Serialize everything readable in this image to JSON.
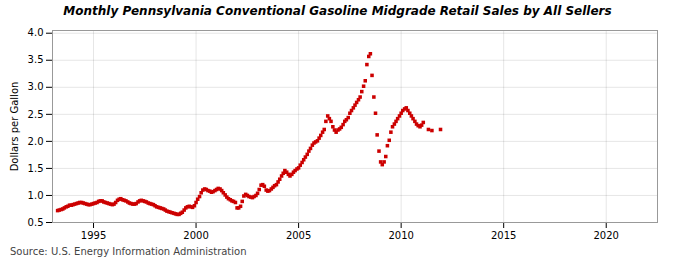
{
  "chart_data": {
    "type": "scatter",
    "title": "Monthly Pennsylvania Conventional Gasoline Midgrade Retail Sales by All Sellers",
    "ylabel": "Dollars per Gallon",
    "source": "Source: U.S. Energy Information Administration",
    "color": "#cc0000",
    "marker": "square",
    "grid": true,
    "xlim": [
      1993.0,
      2022.5
    ],
    "ylim": [
      0.5,
      4.05
    ],
    "xticks": [
      1995,
      2000,
      2005,
      2010,
      2015,
      2020
    ],
    "yticks": [
      0.5,
      {
        "value": 1.0,
        "label": "1.0"
      },
      1.5,
      {
        "value": 2.0,
        "label": "2.0"
      },
      2.5,
      {
        "value": 3.0,
        "label": "3.0"
      },
      3.5,
      {
        "value": 4.0,
        "label": "4.0"
      }
    ],
    "x": [
      1993.25,
      1993.33,
      1993.42,
      1993.5,
      1993.58,
      1993.67,
      1993.75,
      1993.83,
      1993.92,
      1994.0,
      1994.08,
      1994.17,
      1994.25,
      1994.33,
      1994.42,
      1994.5,
      1994.58,
      1994.67,
      1994.75,
      1994.83,
      1994.92,
      1995.0,
      1995.08,
      1995.17,
      1995.25,
      1995.33,
      1995.42,
      1995.5,
      1995.58,
      1995.67,
      1995.75,
      1995.83,
      1995.92,
      1996.0,
      1996.08,
      1996.17,
      1996.25,
      1996.33,
      1996.42,
      1996.5,
      1996.58,
      1996.67,
      1996.75,
      1996.83,
      1996.92,
      1997.0,
      1997.08,
      1997.17,
      1997.25,
      1997.33,
      1997.42,
      1997.5,
      1997.58,
      1997.67,
      1997.75,
      1997.83,
      1997.92,
      1998.0,
      1998.08,
      1998.17,
      1998.25,
      1998.33,
      1998.42,
      1998.5,
      1998.58,
      1998.67,
      1998.75,
      1998.83,
      1998.92,
      1999.0,
      1999.08,
      1999.17,
      1999.25,
      1999.33,
      1999.42,
      1999.5,
      1999.58,
      1999.67,
      1999.75,
      1999.83,
      1999.92,
      2000.0,
      2000.08,
      2000.17,
      2000.25,
      2000.33,
      2000.42,
      2000.5,
      2000.58,
      2000.67,
      2000.75,
      2000.83,
      2000.92,
      2001.0,
      2001.08,
      2001.17,
      2001.25,
      2001.33,
      2001.42,
      2001.5,
      2001.58,
      2001.67,
      2001.75,
      2001.83,
      2001.92,
      2002.0,
      2002.08,
      2002.17,
      2002.25,
      2002.33,
      2002.42,
      2002.5,
      2002.58,
      2002.67,
      2002.75,
      2002.83,
      2002.92,
      2003.0,
      2003.08,
      2003.17,
      2003.25,
      2003.33,
      2003.42,
      2003.5,
      2003.58,
      2003.67,
      2003.75,
      2003.83,
      2003.92,
      2004.0,
      2004.08,
      2004.17,
      2004.25,
      2004.33,
      2004.42,
      2004.5,
      2004.58,
      2004.67,
      2004.75,
      2004.83,
      2004.92,
      2005.0,
      2005.08,
      2005.17,
      2005.25,
      2005.33,
      2005.42,
      2005.5,
      2005.58,
      2005.67,
      2005.75,
      2005.83,
      2005.92,
      2006.0,
      2006.08,
      2006.17,
      2006.25,
      2006.33,
      2006.42,
      2006.5,
      2006.58,
      2006.67,
      2006.75,
      2006.83,
      2006.92,
      2007.0,
      2007.08,
      2007.17,
      2007.25,
      2007.33,
      2007.42,
      2007.5,
      2007.58,
      2007.67,
      2007.75,
      2007.83,
      2007.92,
      2008.0,
      2008.08,
      2008.17,
      2008.25,
      2008.33,
      2008.42,
      2008.5,
      2008.58,
      2008.67,
      2008.75,
      2008.83,
      2008.92,
      2009.0,
      2009.08,
      2009.17,
      2009.25,
      2009.33,
      2009.42,
      2009.5,
      2009.58,
      2009.67,
      2009.75,
      2009.83,
      2009.92,
      2010.0,
      2010.08,
      2010.17,
      2010.25,
      2010.33,
      2010.42,
      2010.5,
      2010.58,
      2010.67,
      2010.75,
      2010.83,
      2010.92,
      2011.0,
      2011.08,
      2011.33,
      2011.5,
      2011.92
    ],
    "values": [
      0.72,
      0.73,
      0.74,
      0.75,
      0.77,
      0.79,
      0.8,
      0.82,
      0.82,
      0.83,
      0.84,
      0.85,
      0.86,
      0.87,
      0.87,
      0.86,
      0.85,
      0.84,
      0.83,
      0.83,
      0.84,
      0.85,
      0.86,
      0.87,
      0.89,
      0.9,
      0.9,
      0.88,
      0.87,
      0.86,
      0.85,
      0.84,
      0.83,
      0.84,
      0.87,
      0.91,
      0.93,
      0.94,
      0.92,
      0.91,
      0.9,
      0.88,
      0.86,
      0.85,
      0.84,
      0.84,
      0.85,
      0.88,
      0.9,
      0.91,
      0.9,
      0.89,
      0.88,
      0.86,
      0.85,
      0.84,
      0.83,
      0.81,
      0.79,
      0.78,
      0.77,
      0.76,
      0.75,
      0.73,
      0.71,
      0.7,
      0.69,
      0.68,
      0.67,
      0.66,
      0.65,
      0.65,
      0.67,
      0.69,
      0.73,
      0.77,
      0.79,
      0.8,
      0.79,
      0.78,
      0.81,
      0.87,
      0.93,
      0.98,
      1.05,
      1.1,
      1.12,
      1.11,
      1.09,
      1.08,
      1.06,
      1.07,
      1.09,
      1.11,
      1.13,
      1.12,
      1.09,
      1.05,
      1.01,
      0.97,
      0.94,
      0.92,
      0.9,
      0.89,
      0.87,
      0.77,
      0.77,
      0.8,
      0.89,
      0.99,
      1.02,
      1.0,
      0.98,
      0.97,
      0.96,
      0.98,
      1.0,
      1.04,
      1.11,
      1.19,
      1.2,
      1.17,
      1.1,
      1.08,
      1.09,
      1.12,
      1.15,
      1.18,
      1.2,
      1.25,
      1.3,
      1.36,
      1.41,
      1.46,
      1.43,
      1.39,
      1.36,
      1.39,
      1.43,
      1.46,
      1.49,
      1.51,
      1.56,
      1.61,
      1.66,
      1.71,
      1.76,
      1.82,
      1.87,
      1.93,
      1.97,
      1.99,
      2.01,
      2.06,
      2.11,
      2.17,
      2.22,
      2.37,
      2.47,
      2.42,
      2.37,
      2.27,
      2.21,
      2.17,
      2.21,
      2.23,
      2.26,
      2.31,
      2.37,
      2.4,
      2.44,
      2.52,
      2.57,
      2.62,
      2.67,
      2.72,
      2.77,
      2.82,
      2.92,
      3.02,
      3.12,
      3.42,
      3.57,
      3.62,
      3.22,
      2.82,
      2.52,
      2.12,
      1.82,
      1.62,
      1.57,
      1.62,
      1.72,
      1.92,
      2.02,
      2.17,
      2.27,
      2.32,
      2.37,
      2.42,
      2.47,
      2.52,
      2.57,
      2.6,
      2.62,
      2.57,
      2.52,
      2.47,
      2.42,
      2.37,
      2.32,
      2.29,
      2.27,
      2.3,
      2.35,
      2.22,
      2.2,
      2.22
    ]
  }
}
